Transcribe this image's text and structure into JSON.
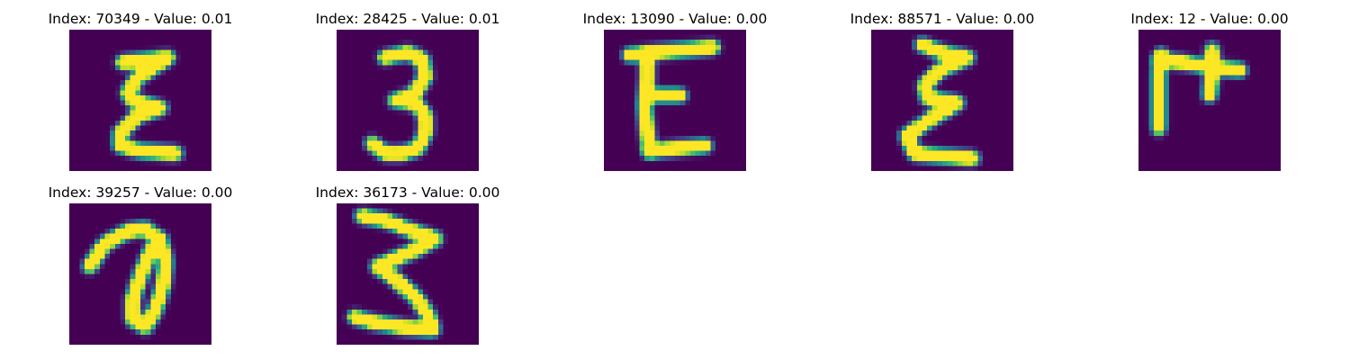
{
  "figure": {
    "panels": [
      {
        "title": "Index: 70349 - Value: 0.01",
        "image": "handwritten-glyph-epsilon",
        "strokes": [
          [
            [
              10.5,
              6.5
            ],
            [
              19.5,
              5.5
            ],
            [
              13.5,
              9.5
            ],
            [
              11.5,
              12.5
            ],
            [
              12.5,
              14
            ],
            [
              18,
              15.5
            ],
            [
              13.5,
              17
            ],
            [
              10,
              20.5
            ],
            [
              10,
              23
            ],
            [
              14,
              24
            ],
            [
              21,
              24.5
            ]
          ]
        ]
      },
      {
        "title": "Index: 28425 - Value: 0.01",
        "image": "handwritten-glyph-3",
        "strokes": [
          [
            [
              9.5,
              5.5
            ],
            [
              14,
              4.5
            ],
            [
              17,
              6
            ],
            [
              17.5,
              9.5
            ],
            [
              15,
              13
            ],
            [
              11.5,
              14
            ],
            [
              15.5,
              14.5
            ],
            [
              17.5,
              17
            ],
            [
              17.5,
              20.5
            ],
            [
              16,
              23.5
            ],
            [
              13,
              24.5
            ],
            [
              9.5,
              24.5
            ],
            [
              7,
              22.5
            ]
          ]
        ]
      },
      {
        "title": "Index: 13090 - Value: 0.00",
        "image": "handwritten-glyph-E",
        "strokes": [
          [
            [
              5,
              5
            ],
            [
              10,
              4.5
            ],
            [
              16,
              4
            ],
            [
              21.5,
              3.5
            ]
          ],
          [
            [
              8.5,
              5
            ],
            [
              8.5,
              10
            ],
            [
              8,
              15
            ],
            [
              8.5,
              20
            ],
            [
              9,
              24
            ]
          ],
          [
            [
              9,
              13
            ],
            [
              15,
              13
            ]
          ],
          [
            [
              9,
              24
            ],
            [
              14,
              23.5
            ],
            [
              20,
              23
            ]
          ]
        ]
      },
      {
        "title": "Index: 88571 - Value: 0.00",
        "image": "handwritten-glyph-epsilon",
        "strokes": [
          [
            [
              10,
              3
            ],
            [
              14,
              4.5
            ],
            [
              19,
              5.5
            ],
            [
              13.5,
              8
            ],
            [
              10.5,
              11
            ],
            [
              11,
              13.5
            ],
            [
              17,
              14.5
            ],
            [
              12,
              17.5
            ],
            [
              7,
              21
            ],
            [
              8.5,
              24.5
            ],
            [
              13.5,
              25
            ],
            [
              20,
              25.5
            ]
          ]
        ]
      },
      {
        "title": "Index: 12 - Value: 0.00",
        "image": "handwritten-glyph-F-rotated",
        "strokes": [
          [
            [
              4,
              19.5
            ],
            [
              4,
              14
            ],
            [
              4,
              8.5
            ],
            [
              4.5,
              5
            ]
          ],
          [
            [
              4,
              6
            ],
            [
              9,
              6.5
            ],
            [
              14.5,
              7.5
            ],
            [
              20,
              8
            ]
          ],
          [
            [
              14.5,
              4
            ],
            [
              14.5,
              8.5
            ],
            [
              14,
              13
            ]
          ]
        ]
      },
      {
        "title": "Index: 39257 - Value: 0.00",
        "image": "handwritten-glyph-at-sign",
        "strokes": [
          [
            [
              4,
              12.5
            ],
            [
              7,
              8
            ],
            [
              11.5,
              5.5
            ],
            [
              15,
              5
            ],
            [
              18,
              7.5
            ],
            [
              19,
              11.5
            ],
            [
              18.5,
              16
            ],
            [
              17,
              21
            ],
            [
              15,
              24.5
            ],
            [
              12.5,
              23
            ],
            [
              12.5,
              19
            ],
            [
              13.5,
              16
            ],
            [
              14.5,
              13
            ],
            [
              16,
              9.5
            ],
            [
              18,
              7
            ]
          ]
        ]
      },
      {
        "title": "Index: 36173 - Value: 0.00",
        "image": "handwritten-glyph-3",
        "strokes": [
          [
            [
              5,
              2.5
            ],
            [
              10,
              3.5
            ],
            [
              15,
              5.5
            ],
            [
              19.5,
              7
            ],
            [
              16,
              9
            ],
            [
              11.5,
              11
            ],
            [
              8,
              12.5
            ],
            [
              11.5,
              15
            ],
            [
              15.5,
              18.5
            ],
            [
              18,
              22
            ],
            [
              19,
              25
            ],
            [
              13,
              24.5
            ],
            [
              7,
              23.5
            ],
            [
              3.5,
              22.5
            ]
          ]
        ]
      }
    ],
    "colors": {
      "background": "#440154",
      "ink": "#fde725",
      "edge_light": "#b5de2b",
      "edge_mid": "#35b779",
      "edge_dark": "#21918c",
      "edge_deep": "#31688e",
      "edge_faint": "#443983"
    }
  }
}
